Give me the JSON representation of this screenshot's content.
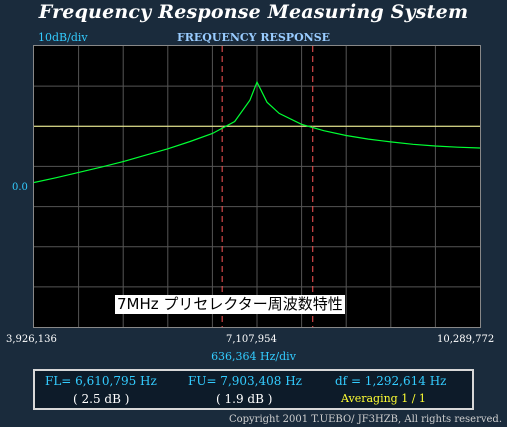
{
  "app": {
    "title": "Frequency Response Measuring System"
  },
  "graph": {
    "title": "FREQUENCY RESPONSE",
    "y_scale": "10dB/div",
    "ref_level": "0.0",
    "x_start": "3,926,136",
    "x_center": "7,107,954",
    "x_end": "10,289,772",
    "x_scale": "636,364  Hz/div",
    "caption": "7MHz  プリセレクター周波数特性",
    "colors": {
      "trace": "#00ff33",
      "ref_line": "#ffff99",
      "markers": "#ff5555",
      "grid": "#555555"
    }
  },
  "results": {
    "fl": "FL= 6,610,795  Hz",
    "fl_db": "( 2.5 dB )",
    "fu": "FU= 7,903,408  Hz",
    "fu_db": "( 1.9 dB )",
    "df": "df = 1,292,614  Hz",
    "averaging": "Averaging    1 / 1"
  },
  "footer": {
    "copyright": "Copyright 2001 T.UEBO/ JF3HZB, All rights reserved."
  },
  "chart_data": {
    "type": "line",
    "title": "FREQUENCY RESPONSE",
    "xlabel": "636,364  Hz/div",
    "ylabel": "10dB/div",
    "xlim": [
      3926136,
      10289772
    ],
    "ylim": [
      -50,
      20
    ],
    "grid": true,
    "series": [
      {
        "x": [
          3926136,
          4244318,
          4562500,
          4880682,
          5198864,
          5517045,
          5835227,
          6153409,
          6471591,
          6789773,
          7007000,
          7107954,
          7250000,
          7425000,
          7743000,
          8061318,
          8379500,
          8697681,
          9015863,
          9334045,
          9652227,
          9970409,
          10289772
        ],
        "y": [
          -14,
          -12.8,
          -11.5,
          -10.2,
          -8.8,
          -7.2,
          -5.6,
          -3.8,
          -1.8,
          1.2,
          6.5,
          11.0,
          6.0,
          3.2,
          0.5,
          -1.1,
          -2.3,
          -3.2,
          -3.9,
          -4.5,
          -4.9,
          -5.2,
          -5.4
        ]
      }
    ],
    "markers": {
      "x": [
        6610795,
        7903408
      ]
    },
    "ref_level": 0
  }
}
